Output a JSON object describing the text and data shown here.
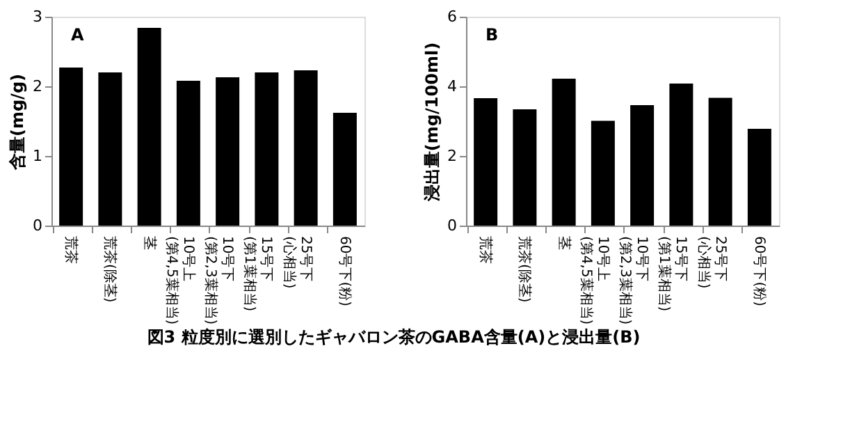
{
  "chart_data": [
    {
      "type": "bar",
      "title": "図3 粒度別に選別したギャバロン茶のGABA含量(A)と浸出量(B)",
      "annotations": [
        "A"
      ],
      "ylabel": "含量(mg/g)",
      "categories": [
        "荒茶",
        "荒茶(除茎)",
        "茎",
        "10号上(第4,5葉相当)",
        "10号下(第2,3葉相当)",
        "15号下(第1葉相当)",
        "25号下(心相当)",
        "60号下(粉)"
      ],
      "values": [
        2.27,
        2.2,
        2.84,
        2.08,
        2.13,
        2.2,
        2.23,
        1.62
      ],
      "color": "#000000",
      "ylim": [
        0,
        3
      ],
      "yticks": [
        0,
        1,
        2,
        3
      ],
      "grid": false
    },
    {
      "type": "bar",
      "annotations": [
        "B"
      ],
      "ylabel": "浸出量(mg/100ml)",
      "categories": [
        "荒茶",
        "荒茶(除茎)",
        "茎",
        "10号上(第4,5葉相当)",
        "10号下(第2,3葉相当)",
        "15号下(第1葉相当)",
        "25号下(心相当)",
        "60号下(粉)"
      ],
      "values": [
        3.66,
        3.34,
        4.22,
        3.01,
        3.46,
        4.08,
        3.67,
        2.78
      ],
      "color": "#000000",
      "ylim": [
        0,
        6
      ],
      "yticks": [
        0,
        2,
        4,
        6
      ],
      "grid": false
    }
  ]
}
